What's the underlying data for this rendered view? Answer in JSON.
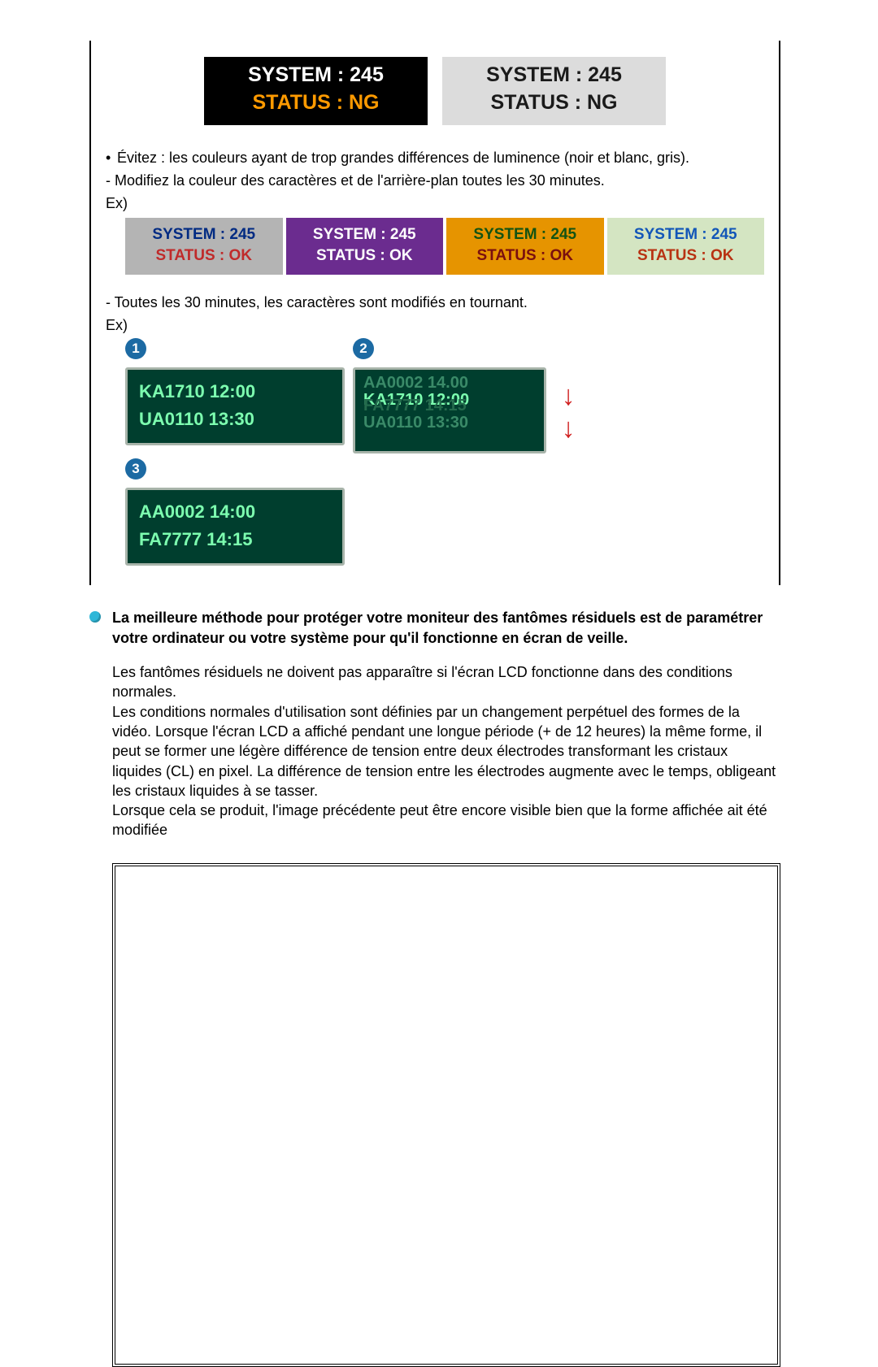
{
  "ng": {
    "box1": {
      "sys": "SYSTEM : 245",
      "stat": "STATUS : NG",
      "bg": "#000000",
      "sys_color": "#ffffff",
      "stat_color": "#ff9a00"
    },
    "box2": {
      "sys": "SYSTEM : 245",
      "stat": "STATUS : NG",
      "bg": "#dcdcdc",
      "sys_color": "#1a1a1a",
      "stat_color": "#1a1a1a"
    }
  },
  "text": {
    "avoid_bullet": "Évitez : les couleurs ayant de trop grandes différences de luminence (noir et blanc, gris).",
    "modify_line": "- Modifiez la couleur des caractères et de l'arrière-plan toutes les 30 minutes.",
    "ex": "Ex)",
    "rotate_line": "- Toutes les 30 minutes, les caractères sont modifiés en tournant.",
    "bold": "La meilleure méthode pour protéger votre moniteur des fantômes résiduels est de paramétrer votre ordinateur ou votre système pour qu'il fonctionne en écran de veille.",
    "body1": "Les fantômes résiduels ne doivent pas apparaître si l'écran LCD fonctionne dans des conditions normales.",
    "body2": "Les conditions normales d'utilisation sont définies par un changement perpétuel des formes de la vidéo. Lorsque l'écran LCD a affiché pendant une longue période (+ de 12 heures) la même forme, il peut se former une légère différence de tension entre deux électrodes transformant les cristaux liquides (CL) en pixel. La différence de tension entre les électrodes augmente avec le temps, obligeant les cristaux liquides à se tasser.",
    "body3": "Lorsque cela se produit, l'image précédente peut être encore visible bien que la forme affichée ait été modifiée"
  },
  "ok": {
    "b1": {
      "sys": "SYSTEM : 245",
      "stat": "STATUS : OK"
    },
    "b2": {
      "sys": "SYSTEM : 245",
      "stat": "STATUS : OK"
    },
    "b3": {
      "sys": "SYSTEM : 245",
      "stat": "STATUS : OK"
    },
    "b4": {
      "sys": "SYSTEM : 245",
      "stat": "STATUS : OK"
    }
  },
  "panes": {
    "p1": {
      "num": "1",
      "l1": "KA1710  12:00",
      "l2": "UA0110  13:30"
    },
    "p2": {
      "num": "2",
      "ghost_top": "AA0002  14.00",
      "row_a": "KA1710  12:00",
      "row_b": "FA7777  14:15",
      "ghost_bot": "UA0110  13:30"
    },
    "p3": {
      "num": "3",
      "l1": "AA0002  14:00",
      "l2": "FA7777  14:15"
    }
  },
  "arrows": {
    "glyph": "↓"
  }
}
